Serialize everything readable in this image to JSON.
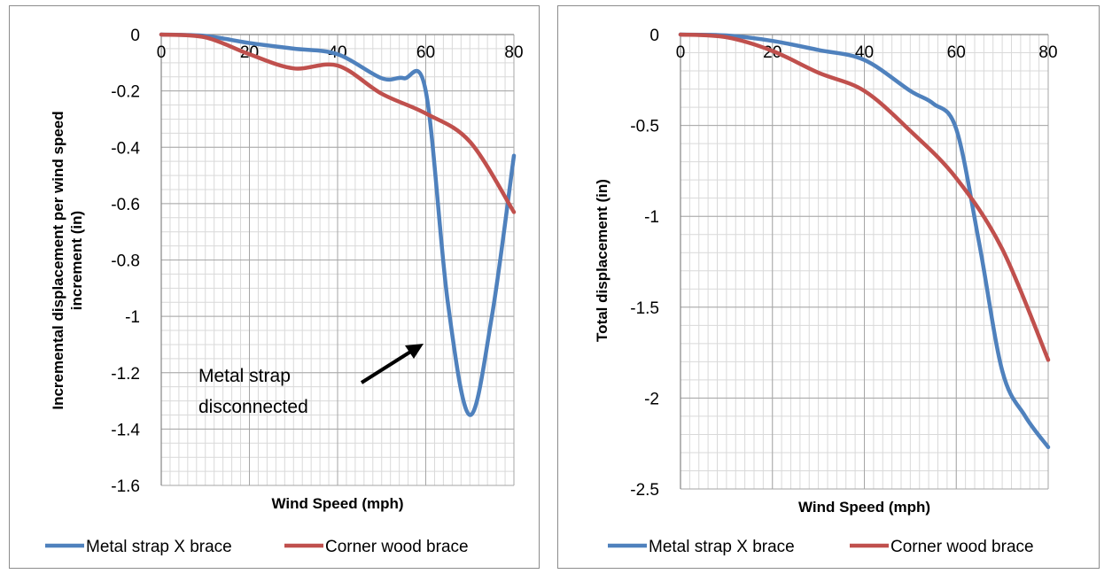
{
  "chart_data": [
    {
      "type": "line",
      "title": "",
      "xlabel": "Wind Speed (mph)",
      "ylabel": "Incremental displacement per wind speed increment (in)",
      "ylabel_lines": [
        "Incremental displacement per wind speed",
        "increment (in)"
      ],
      "xlim": [
        0,
        80
      ],
      "ylim": [
        -1.6,
        0
      ],
      "x_ticks": [
        0,
        20,
        40,
        60,
        80
      ],
      "y_ticks": [
        0,
        -0.2,
        -0.4,
        -0.6,
        -0.8,
        -1,
        -1.2,
        -1.4,
        -1.6
      ],
      "x_tick_labels": [
        "0",
        "20",
        "40",
        "60",
        "80"
      ],
      "y_tick_labels": [
        "0",
        "-0.2",
        "-0.4",
        "-0.6",
        "-0.8",
        "-1",
        "-1.2",
        "-1.4",
        "-1.6"
      ],
      "grid": true,
      "legend_position": "bottom",
      "series": [
        {
          "name": "Metal strap X brace",
          "color": "#4f81bd",
          "x": [
            0,
            10,
            20,
            30,
            40,
            50,
            55,
            60,
            65,
            70,
            75,
            80
          ],
          "y": [
            0,
            -0.005,
            -0.03,
            -0.05,
            -0.07,
            -0.155,
            -0.155,
            -0.2,
            -0.95,
            -1.35,
            -1.0,
            -0.43
          ]
        },
        {
          "name": "Corner wood brace",
          "color": "#c0504d",
          "x": [
            0,
            10,
            20,
            30,
            40,
            50,
            60,
            70,
            80
          ],
          "y": [
            0,
            -0.01,
            -0.07,
            -0.12,
            -0.11,
            -0.21,
            -0.28,
            -0.38,
            -0.63
          ]
        }
      ],
      "annotations": [
        {
          "text_lines": [
            "Metal strap",
            "disconnected"
          ],
          "arrow": true
        }
      ]
    },
    {
      "type": "line",
      "title": "",
      "xlabel": "Wind Speed (mph)",
      "ylabel": "Total displacement (in)",
      "xlim": [
        0,
        80
      ],
      "ylim": [
        -2.5,
        0
      ],
      "x_ticks": [
        0,
        20,
        40,
        60,
        80
      ],
      "y_ticks": [
        0,
        -0.5,
        -1,
        -1.5,
        -2,
        -2.5
      ],
      "x_tick_labels": [
        "0",
        "20",
        "40",
        "60",
        "80"
      ],
      "y_tick_labels": [
        "0",
        "-0.5",
        "-1",
        "-1.5",
        "-2",
        "-2.5"
      ],
      "grid": true,
      "legend_position": "bottom",
      "series": [
        {
          "name": "Metal strap X brace",
          "color": "#4f81bd",
          "x": [
            0,
            10,
            20,
            30,
            40,
            50,
            55,
            60,
            65,
            70,
            75,
            80
          ],
          "y": [
            0,
            -0.005,
            -0.035,
            -0.085,
            -0.14,
            -0.31,
            -0.38,
            -0.52,
            -1.15,
            -1.85,
            -2.1,
            -2.27
          ]
        },
        {
          "name": "Corner wood brace",
          "color": "#c0504d",
          "x": [
            0,
            10,
            20,
            30,
            40,
            50,
            60,
            70,
            80
          ],
          "y": [
            0,
            -0.015,
            -0.09,
            -0.21,
            -0.31,
            -0.53,
            -0.79,
            -1.18,
            -1.79
          ]
        }
      ],
      "annotations": []
    }
  ]
}
